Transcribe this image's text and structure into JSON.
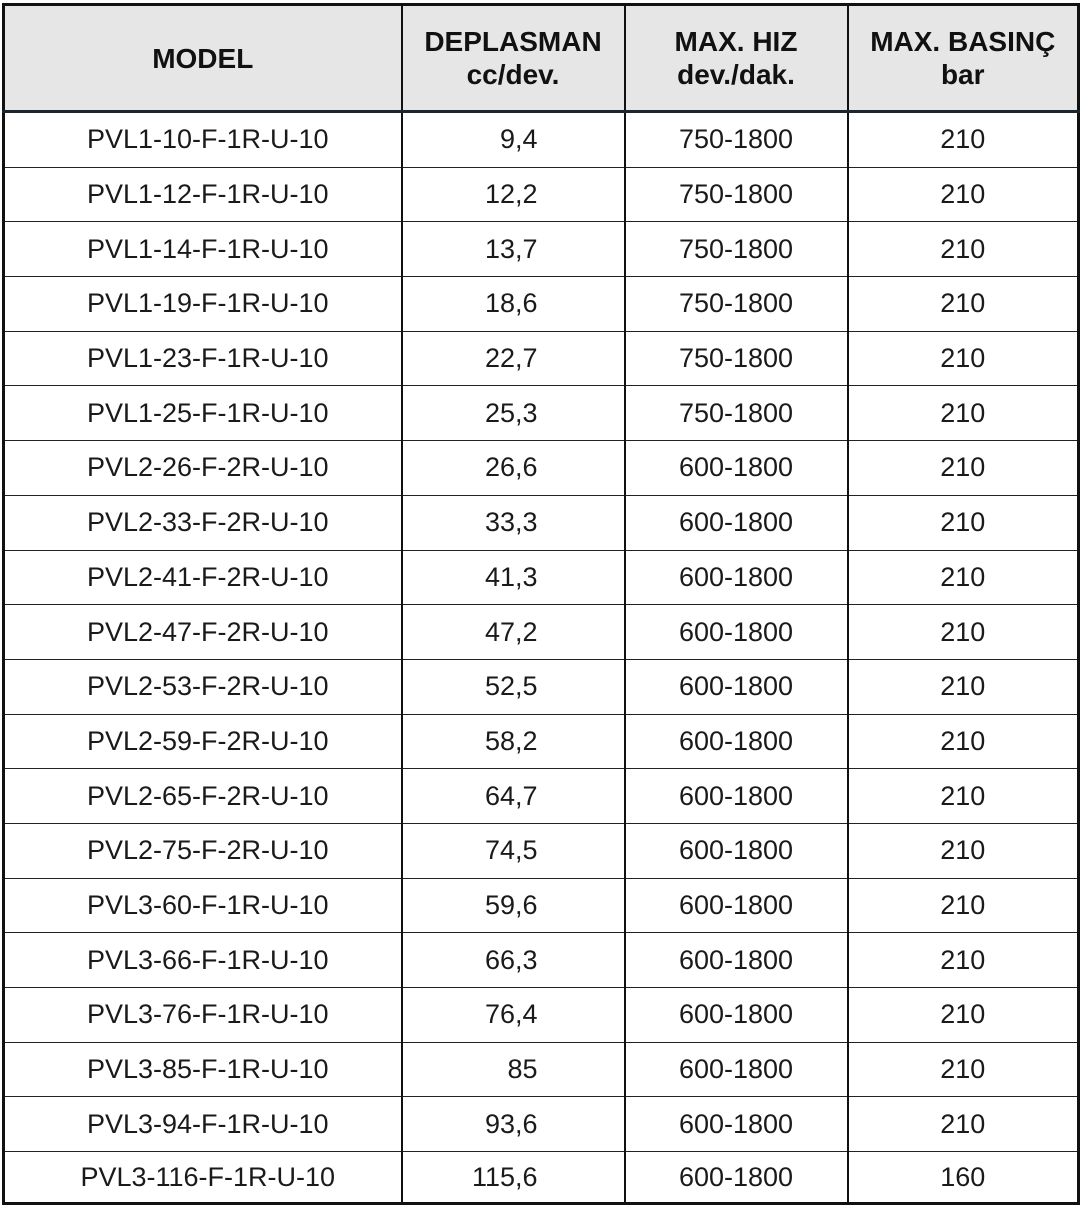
{
  "headers": [
    {
      "line1": "MODEL",
      "line2": ""
    },
    {
      "line1": "DEPLASMAN",
      "line2": "cc/dev."
    },
    {
      "line1": "MAX. HIZ",
      "line2": "dev./dak."
    },
    {
      "line1": "MAX. BASINÇ",
      "line2": "bar"
    }
  ],
  "rows": [
    [
      "PVL1-10-F-1R-U-10",
      "9,4",
      "750-1800",
      "210"
    ],
    [
      "PVL1-12-F-1R-U-10",
      "12,2",
      "750-1800",
      "210"
    ],
    [
      "PVL1-14-F-1R-U-10",
      "13,7",
      "750-1800",
      "210"
    ],
    [
      "PVL1-19-F-1R-U-10",
      "18,6",
      "750-1800",
      "210"
    ],
    [
      "PVL1-23-F-1R-U-10",
      "22,7",
      "750-1800",
      "210"
    ],
    [
      "PVL1-25-F-1R-U-10",
      "25,3",
      "750-1800",
      "210"
    ],
    [
      "PVL2-26-F-2R-U-10",
      "26,6",
      "600-1800",
      "210"
    ],
    [
      "PVL2-33-F-2R-U-10",
      "33,3",
      "600-1800",
      "210"
    ],
    [
      "PVL2-41-F-2R-U-10",
      "41,3",
      "600-1800",
      "210"
    ],
    [
      "PVL2-47-F-2R-U-10",
      "47,2",
      "600-1800",
      "210"
    ],
    [
      "PVL2-53-F-2R-U-10",
      "52,5",
      "600-1800",
      "210"
    ],
    [
      "PVL2-59-F-2R-U-10",
      "58,2",
      "600-1800",
      "210"
    ],
    [
      "PVL2-65-F-2R-U-10",
      "64,7",
      "600-1800",
      "210"
    ],
    [
      "PVL2-75-F-2R-U-10",
      "74,5",
      "600-1800",
      "210"
    ],
    [
      "PVL3-60-F-1R-U-10",
      "59,6",
      "600-1800",
      "210"
    ],
    [
      "PVL3-66-F-1R-U-10",
      "66,3",
      "600-1800",
      "210"
    ],
    [
      "PVL3-76-F-1R-U-10",
      "76,4",
      "600-1800",
      "210"
    ],
    [
      "PVL3-85-F-1R-U-10",
      "85",
      "600-1800",
      "210"
    ],
    [
      "PVL3-94-F-1R-U-10",
      "93,6",
      "600-1800",
      "210"
    ],
    [
      "PVL3-116-F-1R-U-10",
      "115,6",
      "600-1800",
      "160"
    ]
  ],
  "colors": {
    "header_bg": "#e6e6e6",
    "border": "#111111"
  }
}
